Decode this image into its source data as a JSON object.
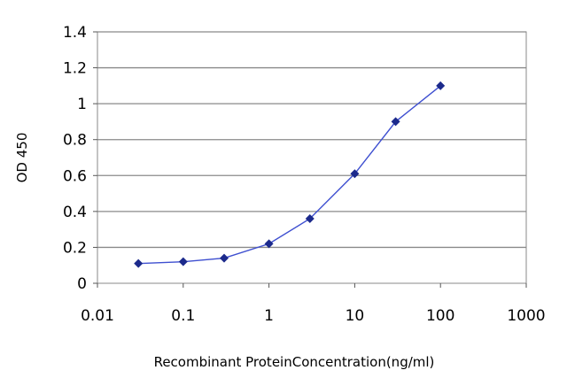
{
  "chart_data": {
    "type": "line",
    "xlabel": "Recombinant ProteinConcentration(ng/ml)",
    "ylabel": "OD 450",
    "x_scale": "log",
    "xlim": [
      0.01,
      1000
    ],
    "ylim": [
      0,
      1.4
    ],
    "x_ticks": [
      "0.01",
      "0.1",
      "1",
      "10",
      "100",
      "1000"
    ],
    "y_ticks": [
      "1.4",
      "1.2",
      "1",
      "0.8",
      "0.6",
      "0.4",
      "0.2",
      "0"
    ],
    "grid": "horizontal",
    "series": [
      {
        "color": "#1c2a8c",
        "x": [
          0.03,
          0.1,
          0.3,
          1,
          3,
          10,
          30,
          100
        ],
        "y": [
          0.11,
          0.12,
          0.14,
          0.22,
          0.36,
          0.61,
          0.9,
          1.1
        ]
      }
    ]
  }
}
